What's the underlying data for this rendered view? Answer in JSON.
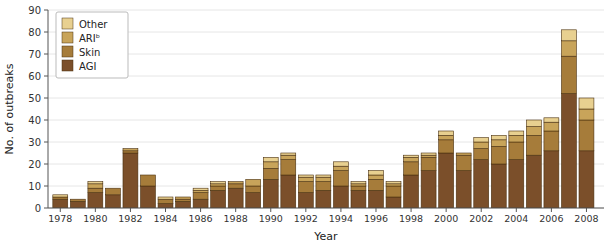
{
  "chart_data": {
    "type": "bar",
    "stacked": true,
    "xlabel": "Year",
    "ylabel": "No. of outbreaks",
    "x": [
      1978,
      1979,
      1980,
      1981,
      1982,
      1983,
      1984,
      1985,
      1986,
      1987,
      1988,
      1989,
      1990,
      1991,
      1992,
      1993,
      1994,
      1995,
      1996,
      1997,
      1998,
      1999,
      2000,
      2001,
      2002,
      2003,
      2004,
      2005,
      2006,
      2007,
      2008
    ],
    "series": [
      {
        "name": "AGI",
        "color": "#7B4F2A",
        "values": [
          4,
          3,
          7,
          6,
          25,
          10,
          2,
          3,
          4,
          8,
          9,
          7,
          13,
          15,
          7,
          8,
          10,
          8,
          8,
          5,
          15,
          17,
          25,
          17,
          22,
          20,
          22,
          24,
          26,
          52,
          26
        ]
      },
      {
        "name": "Skin",
        "color": "#A67C3A",
        "values": [
          1,
          1,
          2,
          3,
          1,
          5,
          2,
          1,
          3,
          2,
          2,
          3,
          5,
          7,
          5,
          4,
          7,
          2,
          5,
          5,
          6,
          6,
          6,
          7,
          5,
          8,
          8,
          9,
          9,
          17,
          14
        ]
      },
      {
        "name": "ARIᵇ",
        "color": "#C8A45A",
        "values": [
          0,
          0,
          2,
          0,
          1,
          0,
          0,
          1,
          1,
          1,
          1,
          3,
          3,
          2,
          2,
          2,
          2,
          1,
          2,
          1,
          2,
          1,
          2,
          1,
          3,
          3,
          3,
          4,
          4,
          7,
          5
        ]
      },
      {
        "name": "Other",
        "color": "#E8D090",
        "values": [
          1,
          0,
          1,
          0,
          0,
          0,
          1,
          0,
          1,
          1,
          0,
          0,
          2,
          1,
          1,
          1,
          2,
          1,
          2,
          1,
          1,
          1,
          2,
          0,
          2,
          2,
          2,
          3,
          2,
          5,
          5
        ]
      }
    ],
    "xlim": [
      1977.3,
      2009.0
    ],
    "xticks": [
      1978,
      1980,
      1982,
      1984,
      1986,
      1988,
      1990,
      1992,
      1994,
      1996,
      1998,
      2000,
      2002,
      2004,
      2006,
      2008
    ],
    "ylim": [
      0,
      90
    ],
    "yticks": [
      0,
      10,
      20,
      30,
      40,
      50,
      60,
      70,
      80,
      90
    ],
    "legend": "upper left"
  }
}
